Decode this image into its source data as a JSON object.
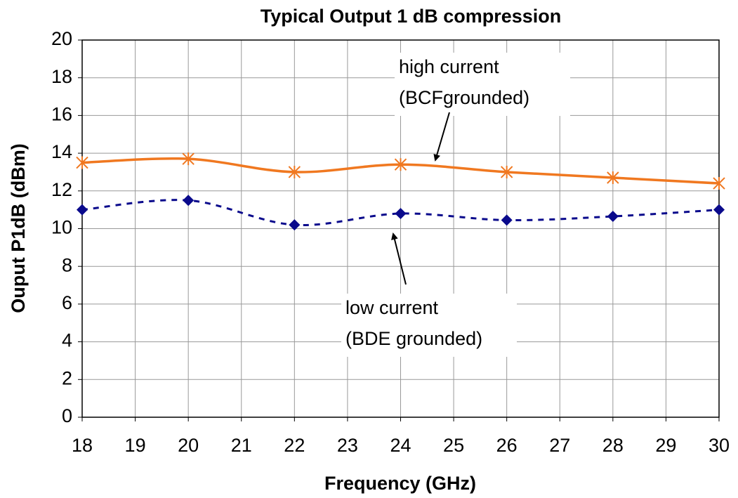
{
  "chart_data": {
    "type": "line",
    "title": "Typical Output 1 dB compression",
    "x_label": "Frequency (GHz)",
    "y_label": "Ouput P1dB (dBm)",
    "x": [
      18,
      20,
      22,
      24,
      26,
      28,
      30
    ],
    "series": [
      {
        "color": "#f07820",
        "marker": "x",
        "dash": false,
        "values": [
          13.5,
          13.7,
          13.0,
          13.4,
          13.0,
          12.7,
          12.4
        ]
      },
      {
        "color": "#0a0a8c",
        "marker": "diamond",
        "dash": true,
        "values": [
          11.0,
          11.5,
          10.2,
          10.8,
          10.45,
          10.65,
          11.0
        ]
      }
    ],
    "annotations": [
      {
        "lines": [
          "high current",
          "(BCFgrounded)"
        ]
      },
      {
        "lines": [
          "low current",
          "(BDE grounded)"
        ]
      }
    ],
    "xlim": [
      18,
      30
    ],
    "xticks": [
      18,
      19,
      20,
      21,
      22,
      23,
      24,
      25,
      26,
      27,
      28,
      29,
      30
    ],
    "ylim": [
      0,
      20
    ],
    "yticks": [
      0,
      2,
      4,
      6,
      8,
      10,
      12,
      14,
      16,
      18,
      20
    ],
    "grid": true
  }
}
